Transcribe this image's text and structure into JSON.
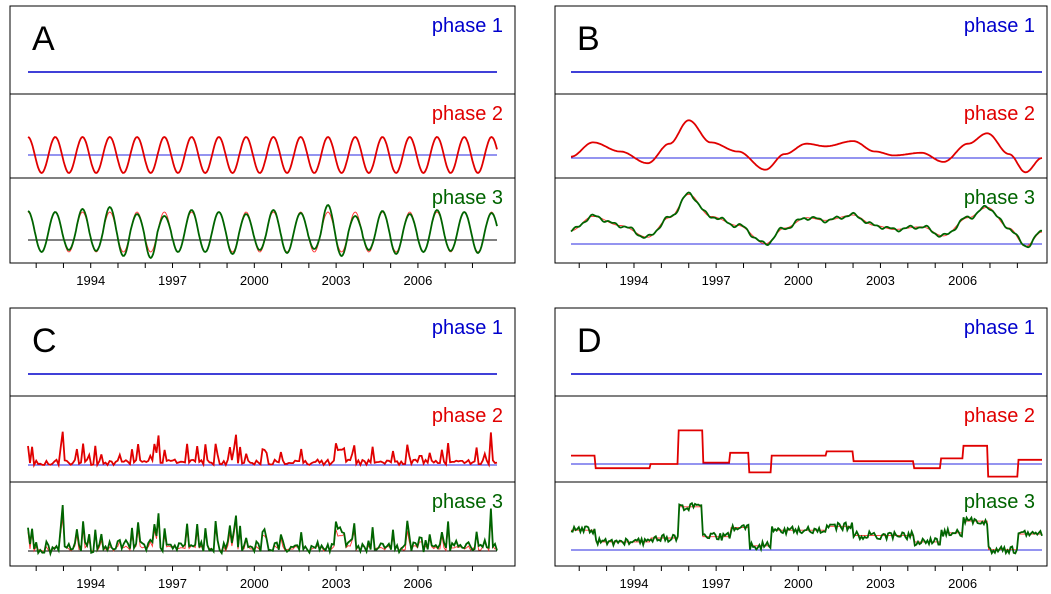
{
  "colors": {
    "phase1": "#0000cc",
    "phase2": "#e00000",
    "phase3": "#006400",
    "reference_line": "#2a2ae0",
    "overlay_thin": "#ff3030",
    "frame": "#000000"
  },
  "x_ticks": [
    "1994",
    "1997",
    "2000",
    "2003",
    "2006"
  ],
  "panels": [
    {
      "letter": "A",
      "phase1": "phase 1",
      "phase2": "phase 2",
      "phase3": "phase 3"
    },
    {
      "letter": "B",
      "phase1": "phase 1",
      "phase2": "phase 2",
      "phase3": "phase 3"
    },
    {
      "letter": "C",
      "phase1": "phase 1",
      "phase2": "phase 2",
      "phase3": "phase 3"
    },
    {
      "letter": "D",
      "phase1": "phase 1",
      "phase2": "phase 2",
      "phase3": "phase 3"
    }
  ],
  "chart_data": [
    {
      "type": "line",
      "panel": "A",
      "x_range": [
        1991.7,
        2008.9
      ],
      "x_ticks": [
        1994,
        1997,
        2000,
        2003,
        2006
      ],
      "series": [
        {
          "name": "phase 1",
          "note": "constant flat line",
          "values_relative": 0
        },
        {
          "name": "phase 2",
          "shape": "sinusoid",
          "period_years": 1.0,
          "amplitude": 1.0
        },
        {
          "name": "phase 3",
          "shape": "sinusoid with varying peak heights, thin overlay of phase 2 shape",
          "period_years": 1.0
        }
      ]
    },
    {
      "type": "line",
      "panel": "B",
      "x_range": [
        1991.7,
        2008.9
      ],
      "x_ticks": [
        1994,
        1997,
        2000,
        2003,
        2006
      ],
      "series": [
        {
          "name": "phase 1",
          "note": "constant flat line",
          "values_relative": 0
        },
        {
          "name": "phase 2",
          "shape": "smooth low-frequency curve",
          "x": [
            1991.7,
            1992.5,
            1993.5,
            1994.5,
            1995.3,
            1996.0,
            1996.8,
            1997.8,
            1998.8,
            1999.5,
            2000.3,
            2001.0,
            2002.0,
            2002.8,
            2003.5,
            2004.5,
            2005.3,
            2006.2,
            2006.9,
            2007.7,
            2008.3,
            2008.9
          ],
          "y": [
            0.05,
            0.6,
            0.25,
            -0.2,
            0.55,
            1.45,
            0.6,
            0.25,
            -0.45,
            0.15,
            0.55,
            0.45,
            0.65,
            0.25,
            0.1,
            0.2,
            -0.15,
            0.55,
            0.95,
            0.15,
            -0.55,
            0.0
          ]
        },
        {
          "name": "phase 3",
          "shape": "smooth low-frequency curve following phase 2 with small wiggles"
        }
      ]
    },
    {
      "type": "line",
      "panel": "C",
      "x_range": [
        1991.7,
        2008.9
      ],
      "x_ticks": [
        1994,
        1997,
        2000,
        2003,
        2006
      ],
      "series": [
        {
          "name": "phase 1",
          "note": "constant flat line",
          "values_relative": 0
        },
        {
          "name": "phase 2",
          "shape": "noisy spiky series near baseline with occasional large spikes"
        },
        {
          "name": "phase 3",
          "shape": "noisy spiky series following phase 2 with larger excursions"
        }
      ]
    },
    {
      "type": "line",
      "panel": "D",
      "x_range": [
        1991.7,
        2008.9
      ],
      "x_ticks": [
        1994,
        1997,
        2000,
        2003,
        2006
      ],
      "series": [
        {
          "name": "phase 1",
          "note": "constant flat line",
          "values_relative": 0
        },
        {
          "name": "phase 2",
          "shape": "step function",
          "x": [
            1991.7,
            1992.6,
            1993.6,
            1994.6,
            1995.6,
            1996.0,
            1996.5,
            1997.5,
            1998.2,
            1999.0,
            2000.0,
            2001.0,
            2002.0,
            2002.8,
            2004.2,
            2005.2,
            2006.0,
            2006.9,
            2008.0,
            2008.9
          ],
          "y": [
            0.3,
            -0.15,
            -0.15,
            0.0,
            1.2,
            1.2,
            0.05,
            0.4,
            -0.3,
            0.3,
            0.3,
            0.45,
            0.1,
            0.1,
            -0.15,
            0.2,
            0.65,
            -0.45,
            0.15,
            0.15
          ]
        },
        {
          "name": "phase 3",
          "shape": "noisy series tracking phase 2 step levels"
        }
      ]
    }
  ]
}
